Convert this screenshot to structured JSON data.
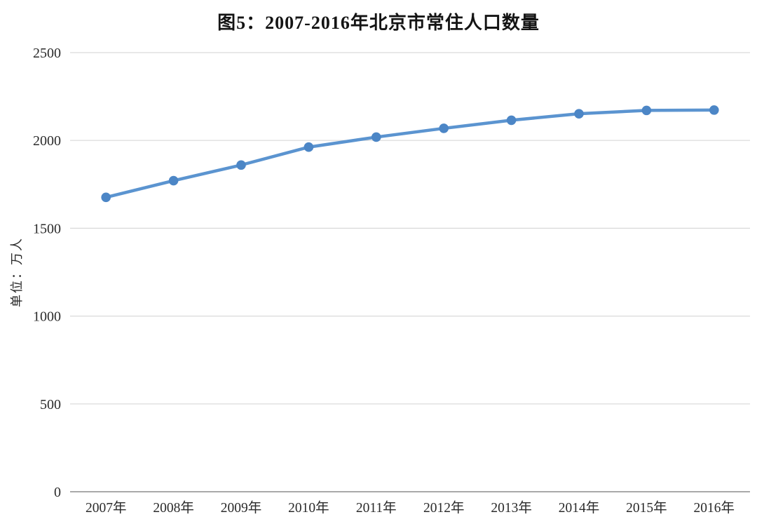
{
  "title": "图5：2007-2016年北京市常住人口数量",
  "chart_data": {
    "type": "line",
    "title": "图5：2007-2016年北京市常住人口数量",
    "categories": [
      "2007年",
      "2008年",
      "2009年",
      "2010年",
      "2011年",
      "2012年",
      "2013年",
      "2014年",
      "2015年",
      "2016年"
    ],
    "series": [
      {
        "name": "北京市常住人口",
        "values": [
          1676,
          1771,
          1860,
          1962,
          2019,
          2069,
          2115,
          2152,
          2171,
          2173
        ]
      }
    ],
    "xlabel": "",
    "ylabel": "单位：万人",
    "ylim": [
      0,
      2500
    ],
    "yticks": [
      0,
      500,
      1000,
      1500,
      2000,
      2500
    ],
    "grid": true,
    "legend_position": "none",
    "colors": {
      "line": "#5B94D0",
      "marker": "#4C86C6",
      "gridline": "#D9D9D9",
      "axis_line": "#A9A9A9",
      "tick_label": "#2B2B2B",
      "axis_title": "#2B2B2B",
      "title": "#141414",
      "background": "#FFFFFF"
    }
  }
}
